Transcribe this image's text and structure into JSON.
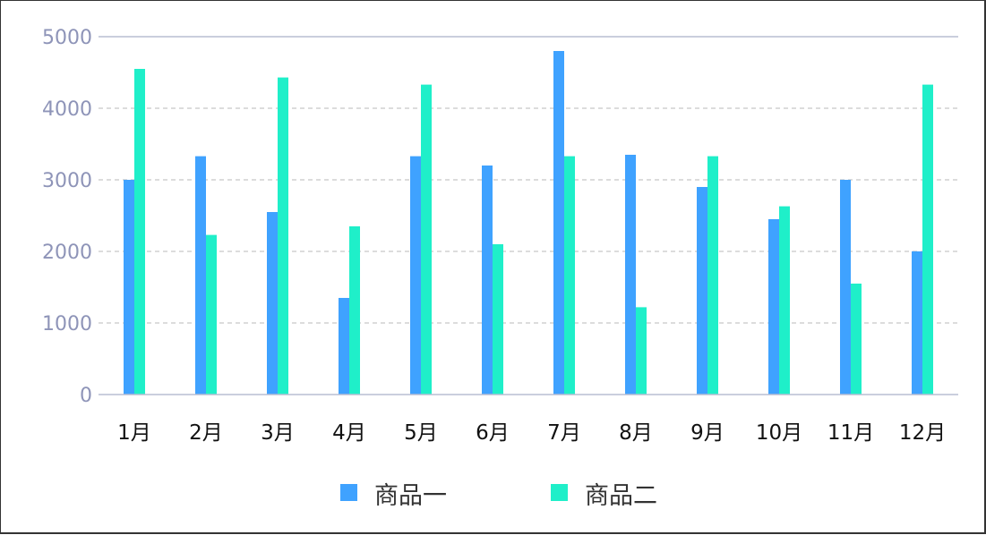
{
  "chart_data": {
    "type": "bar",
    "categories": [
      "1月",
      "2月",
      "3月",
      "4月",
      "5月",
      "6月",
      "7月",
      "8月",
      "9月",
      "10月",
      "11月",
      "12月"
    ],
    "series": [
      {
        "name": "商品一",
        "color": "#3fa2ff",
        "values": [
          3000,
          3330,
          2550,
          1350,
          3330,
          3200,
          4800,
          3350,
          2900,
          2450,
          3000,
          2000
        ]
      },
      {
        "name": "商品二",
        "color": "#1fefc9",
        "values": [
          4550,
          2230,
          4430,
          2350,
          4330,
          2100,
          3330,
          1220,
          3330,
          2630,
          1550,
          4330
        ]
      }
    ],
    "ylim": [
      0,
      5000
    ],
    "yticks": [
      0,
      1000,
      2000,
      3000,
      4000,
      5000
    ],
    "grid": "dashed horizontal",
    "legend_position": "bottom-center",
    "axis_color": "#b9bdd2",
    "grid_color": "#c8c8c8"
  }
}
